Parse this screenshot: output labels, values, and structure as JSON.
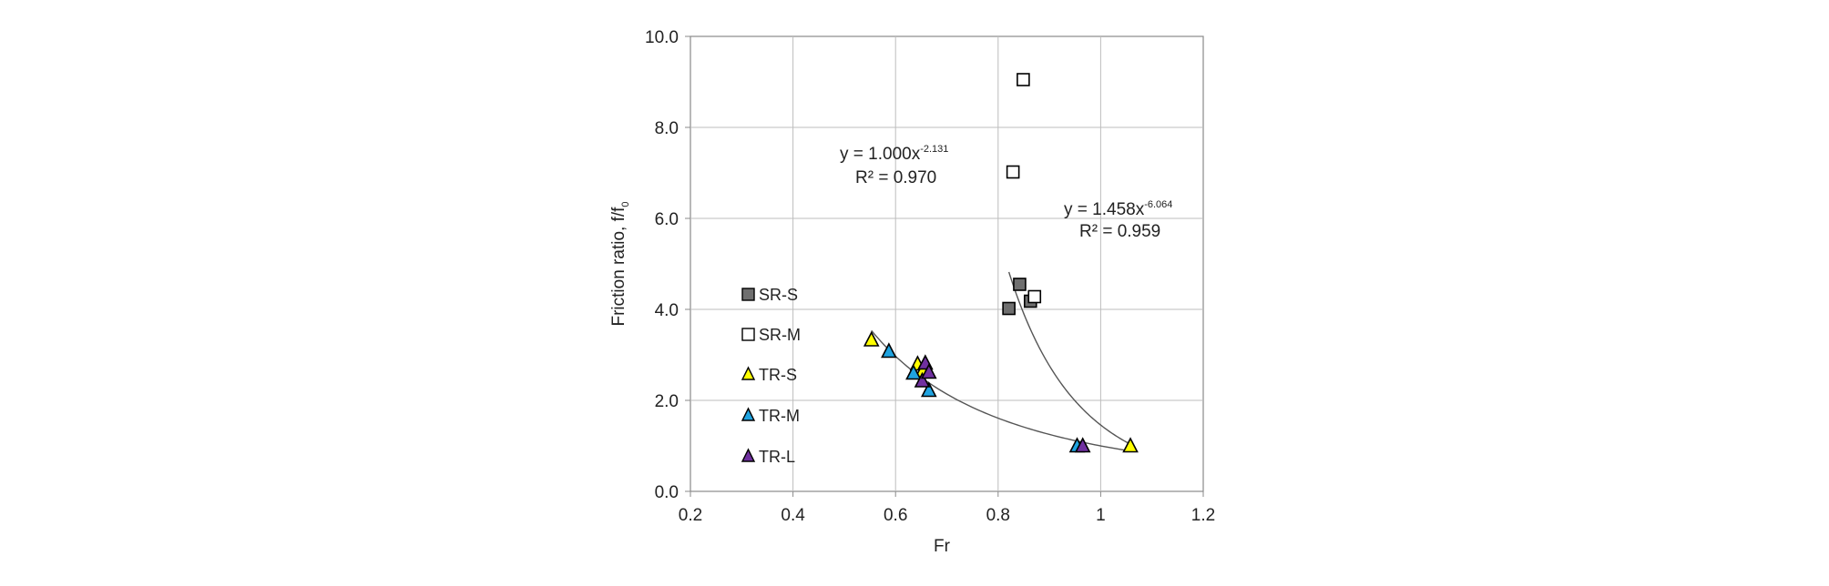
{
  "chart_data": {
    "type": "scatter",
    "xlabel": "Fr",
    "ylabel": "Friction ratio, f/f",
    "ylabel_subscript": "0",
    "xlim": [
      0.2,
      1.2
    ],
    "ylim": [
      0.0,
      10.0
    ],
    "xticks": [
      0.2,
      0.4,
      0.6,
      0.8,
      1.0,
      1.2
    ],
    "xtick_labels": [
      "0.2",
      "0.4",
      "0.6",
      "0.8",
      "1",
      "1.2"
    ],
    "yticks": [
      0.0,
      2.0,
      4.0,
      6.0,
      8.0,
      10.0
    ],
    "ytick_labels": [
      "0.0",
      "2.0",
      "4.0",
      "6.0",
      "8.0",
      "10.0"
    ],
    "grid": true,
    "legend_position": "left",
    "series": [
      {
        "name": "SR-S",
        "marker": "square",
        "color": "#6f6f6f",
        "x": [
          0.821,
          0.842,
          0.863
        ],
        "y": [
          4.02,
          4.55,
          4.18
        ]
      },
      {
        "name": "SR-M",
        "marker": "square",
        "color": "#ffffff",
        "x": [
          0.849,
          0.829,
          0.871
        ],
        "y": [
          9.05,
          7.02,
          4.28
        ]
      },
      {
        "name": "TR-S",
        "marker": "triangle",
        "color": "#ffff00",
        "x": [
          0.553,
          0.643,
          0.653,
          1.058
        ],
        "y": [
          3.33,
          2.8,
          2.65,
          1.0
        ]
      },
      {
        "name": "TR-M",
        "marker": "triangle",
        "color": "#1fa3e0",
        "x": [
          0.587,
          0.635,
          0.665,
          0.954
        ],
        "y": [
          3.08,
          2.6,
          2.22,
          1.0
        ]
      },
      {
        "name": "TR-L",
        "marker": "triangle",
        "color": "#7030a0",
        "x": [
          0.652,
          0.658,
          0.665,
          0.965
        ],
        "y": [
          2.43,
          2.82,
          2.62,
          1.0
        ]
      }
    ],
    "fit_lines": [
      {
        "coef": 1.0,
        "exponent": -2.131,
        "x_range": [
          0.553,
          1.058
        ]
      },
      {
        "coef": 1.458,
        "exponent": -6.064,
        "x_range": [
          0.821,
          1.058
        ]
      }
    ],
    "annotations": [
      {
        "text": "y = 1.000x",
        "superscript": "-2.131",
        "r2": "R² = 0.970"
      },
      {
        "text": "y = 1.458x",
        "superscript": "-6.064",
        "r2": "R² = 0.959"
      }
    ]
  }
}
